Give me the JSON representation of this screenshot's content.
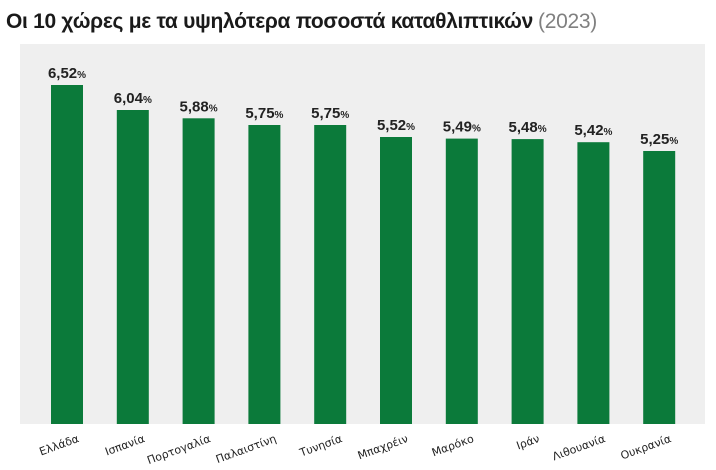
{
  "chart_data": {
    "type": "bar",
    "title": "Οι 10 χώρες με τα υψηλότερα ποσοστά καταθλιπτικών",
    "subtitle": "(2023)",
    "categories": [
      "Ελλάδα",
      "Ισπανία",
      "Πορτογαλία",
      "Παλαιστίνη",
      "Τυνησία",
      "Μπαχρέιν",
      "Μαρόκο",
      "Ιράν",
      "Λιθουανία",
      "Ουκρανία"
    ],
    "values": [
      6.52,
      6.04,
      5.88,
      5.75,
      5.75,
      5.52,
      5.49,
      5.48,
      5.42,
      5.25
    ],
    "value_labels": [
      "6,52",
      "6,04",
      "5,88",
      "5,75",
      "5,75",
      "5,52",
      "5,49",
      "5,48",
      "5,42",
      "5,25"
    ],
    "value_suffix": "%",
    "ylim": [
      0,
      6.52
    ],
    "grid": false,
    "legend": "none",
    "colors": {
      "bar": "#0b7a3a",
      "plot_background": "#efefef",
      "text": "#222222",
      "subtitle": "#808080"
    }
  }
}
